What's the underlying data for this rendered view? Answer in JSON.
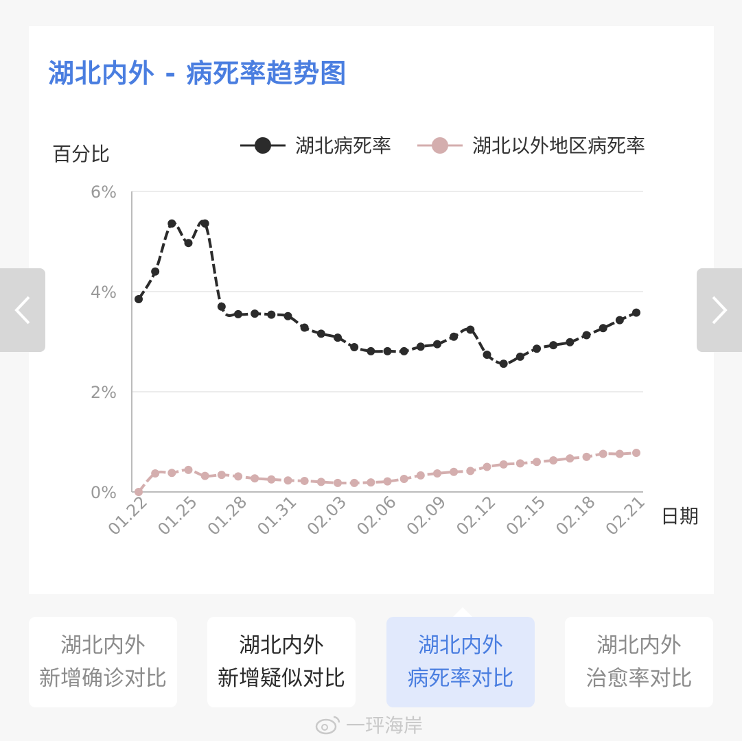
{
  "title": "湖北内外 - 病死率趋势图",
  "colors": {
    "accent": "#4a7ee0",
    "hubei": "#2b2b2b",
    "outside": "#d4aeae"
  },
  "chart_data": {
    "type": "line",
    "ylabel": "百分比",
    "xlabel": "日期",
    "ylim": [
      0,
      6
    ],
    "y_ticks": [
      "0%",
      "2%",
      "4%",
      "6%"
    ],
    "x_tick_labels": [
      "01.22",
      "01.25",
      "01.28",
      "01.31",
      "02.03",
      "02.06",
      "02.09",
      "02.12",
      "02.15",
      "02.18",
      "02.21"
    ],
    "legend_position": "top-right",
    "grid": true,
    "x": [
      "01.22",
      "01.23",
      "01.24",
      "01.25",
      "01.26",
      "01.27",
      "01.28",
      "01.29",
      "01.30",
      "01.31",
      "02.01",
      "02.02",
      "02.03",
      "02.04",
      "02.05",
      "02.06",
      "02.07",
      "02.08",
      "02.09",
      "02.10",
      "02.11",
      "02.12",
      "02.13",
      "02.14",
      "02.15",
      "02.16",
      "02.17",
      "02.18",
      "02.19",
      "02.20",
      "02.21"
    ],
    "series": [
      {
        "name": "湖北病死率",
        "color": "#2b2b2b",
        "values": [
          3.85,
          4.4,
          5.36,
          4.97,
          5.36,
          3.7,
          3.55,
          3.56,
          3.54,
          3.51,
          3.28,
          3.16,
          3.08,
          2.89,
          2.81,
          2.81,
          2.81,
          2.9,
          2.95,
          3.1,
          3.24,
          2.74,
          2.56,
          2.7,
          2.86,
          2.93,
          2.99,
          3.13,
          3.27,
          3.43,
          3.58
        ]
      },
      {
        "name": "湖北以外地区病死率",
        "color": "#d4aeae",
        "values": [
          0.0,
          0.37,
          0.38,
          0.44,
          0.32,
          0.34,
          0.31,
          0.27,
          0.25,
          0.23,
          0.22,
          0.2,
          0.18,
          0.18,
          0.19,
          0.21,
          0.26,
          0.33,
          0.37,
          0.4,
          0.42,
          0.5,
          0.55,
          0.57,
          0.6,
          0.63,
          0.67,
          0.7,
          0.76,
          0.76,
          0.78
        ]
      }
    ]
  },
  "nav": {
    "prev_icon": "chevron-left-icon",
    "next_icon": "chevron-right-icon"
  },
  "tabs": [
    {
      "line1": "湖北内外",
      "line2": "新增确诊对比"
    },
    {
      "line1": "湖北内外",
      "line2": "新增疑似对比"
    },
    {
      "line1": "湖北内外",
      "line2": "病死率对比"
    },
    {
      "line1": "湖北内外",
      "line2": "治愈率对比"
    }
  ],
  "watermark": "一玶海岸"
}
